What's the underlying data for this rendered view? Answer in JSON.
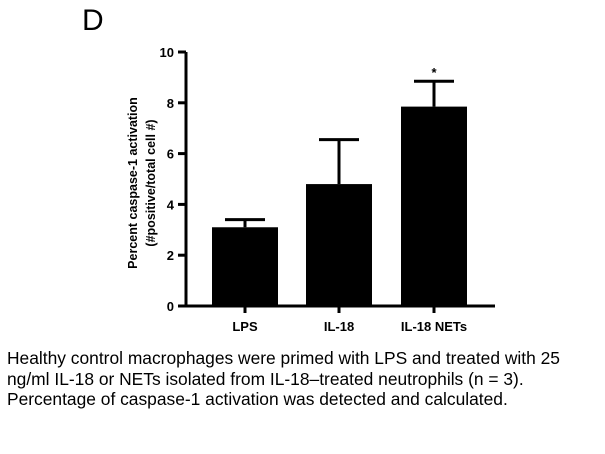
{
  "panel_label": "D",
  "caption": "Healthy control macrophages were primed with LPS and treated with 25 ng/ml IL-18 or NETs isolated from IL-18–treated neutrophils (n = 3). Percentage of caspase-1 activation was detected and calculated.",
  "colors": {
    "bar": "#000000",
    "axis": "#000000",
    "background": "#ffffff"
  },
  "chart_data": {
    "type": "bar",
    "title": "",
    "categories": [
      "LPS",
      "IL-18",
      "IL-18 NETs"
    ],
    "values": [
      3.1,
      4.8,
      7.85
    ],
    "error_upper": [
      3.4,
      6.55,
      8.85
    ],
    "significance": [
      "",
      "",
      "*"
    ],
    "ylim": [
      0,
      10
    ],
    "yticks": [
      0,
      2,
      4,
      6,
      8,
      10
    ],
    "ytick_labels": [
      "0",
      "2",
      "4",
      "6",
      "8",
      "10"
    ],
    "xlabel": "",
    "ylabel_line1": "Percent caspase-1 activation",
    "ylabel_line2": "(#positive/total cell #)",
    "grid": false
  }
}
